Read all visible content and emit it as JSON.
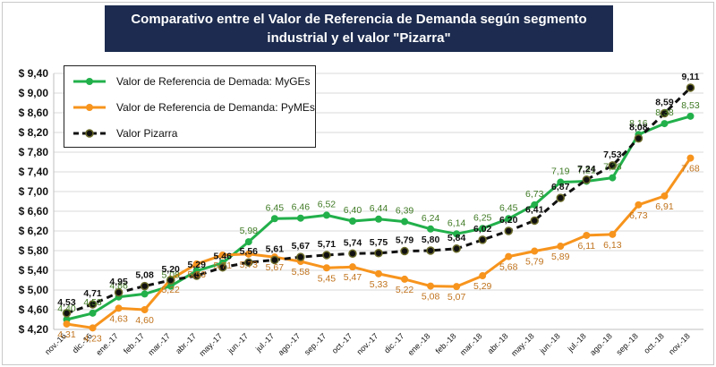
{
  "chart_data": {
    "type": "line",
    "title": "Comparativo entre el Valor de Referencia de Demanda según segmento industrial y el valor \"Pizarra\"",
    "categories": [
      "nov.-16",
      "dic.-16",
      "ene.-17",
      "feb.-17",
      "mar.-17",
      "abr.-17",
      "may.-17",
      "jun.-17",
      "jul.-17",
      "ago.-17",
      "sep.-17",
      "oct.-17",
      "nov.-17",
      "dic.-17",
      "ene.-18",
      "feb.-18",
      "mar.-18",
      "abr.-18",
      "may.-18",
      "jun.-18",
      "jul.-18",
      "ago.-18",
      "sep.-18",
      "oct.-18",
      "nov.-18"
    ],
    "series": [
      {
        "name": "Valor de Referencia de Demada: MyGEs",
        "color": "#22b04b",
        "values": [
          4.4,
          4.53,
          4.86,
          4.92,
          5.08,
          5.39,
          5.55,
          5.98,
          6.45,
          6.46,
          6.52,
          6.4,
          6.44,
          6.39,
          6.24,
          6.14,
          6.25,
          6.45,
          6.73,
          7.19,
          7.21,
          7.28,
          8.16,
          8.38,
          8.53
        ],
        "labels": [
          "4,40",
          "4,53",
          "4,86",
          "",
          "5,08",
          "",
          "",
          "5,98",
          "6,45",
          "6,46",
          "6,52",
          "6,40",
          "6,44",
          "6,39",
          "6,24",
          "6,14",
          "6,25",
          "6,45",
          "6,73",
          "7,19",
          "7,21",
          "7,28",
          "8,16",
          "8,38",
          "8,53"
        ]
      },
      {
        "name": "Valor de Referencia de Demanda: PyMEs",
        "color": "#f7941d",
        "values": [
          4.31,
          4.23,
          4.63,
          4.6,
          5.22,
          5.53,
          5.71,
          5.73,
          5.67,
          5.58,
          5.45,
          5.47,
          5.33,
          5.22,
          5.08,
          5.07,
          5.29,
          5.68,
          5.79,
          5.89,
          6.11,
          6.13,
          6.73,
          6.91,
          7.68
        ],
        "labels": [
          "4,31",
          "4,23",
          "4,63",
          "4,60",
          "5,22",
          "5,53",
          "5,71",
          "5,73",
          "5,67",
          "5,58",
          "5,45",
          "5,47",
          "5,33",
          "5,22",
          "5,08",
          "5,07",
          "5,29",
          "5,68",
          "5,79",
          "5,89",
          "6,11",
          "6,13",
          "6,73",
          "6,91",
          "7,68"
        ]
      },
      {
        "name": "Valor Pizarra",
        "color": "#111111",
        "values": [
          4.53,
          4.71,
          4.95,
          5.08,
          5.2,
          5.29,
          5.46,
          5.56,
          5.61,
          5.67,
          5.71,
          5.74,
          5.75,
          5.79,
          5.8,
          5.84,
          6.02,
          6.2,
          6.41,
          6.87,
          7.24,
          7.53,
          8.08,
          8.59,
          9.11
        ],
        "labels": [
          "4,53",
          "4,71",
          "4,95",
          "5,08",
          "5,20",
          "5,29",
          "5,46",
          "5,56",
          "5,61",
          "5,67",
          "5,71",
          "5,74",
          "5,75",
          "5,79",
          "5,80",
          "5,84",
          "6,02",
          "6,20",
          "6,41",
          "6,87",
          "7,24",
          "7,53",
          "8,08",
          "8,59",
          "9,11"
        ]
      }
    ],
    "y_ticks": [
      "$ 4,20",
      "$ 4,60",
      "$ 5,00",
      "$ 5,40",
      "$ 5,80",
      "$ 6,20",
      "$ 6,60",
      "$ 7,00",
      "$ 7,40",
      "$ 7,80",
      "$ 8,20",
      "$ 8,60",
      "$ 9,00",
      "$ 9,40"
    ],
    "ylim": [
      4.2,
      9.4
    ],
    "grid": true,
    "legend_position": "top-left"
  },
  "legend": {
    "mygs": "Valor de Referencia de Demada: MyGEs",
    "pymes": "Valor de Referencia de Demanda: PyMEs",
    "pizarra": "Valor Pizarra"
  },
  "title": {
    "line1": "Comparativo entre el Valor de Referencia de Demanda según segmento",
    "line2": "industrial y el valor \"Pizarra\""
  }
}
